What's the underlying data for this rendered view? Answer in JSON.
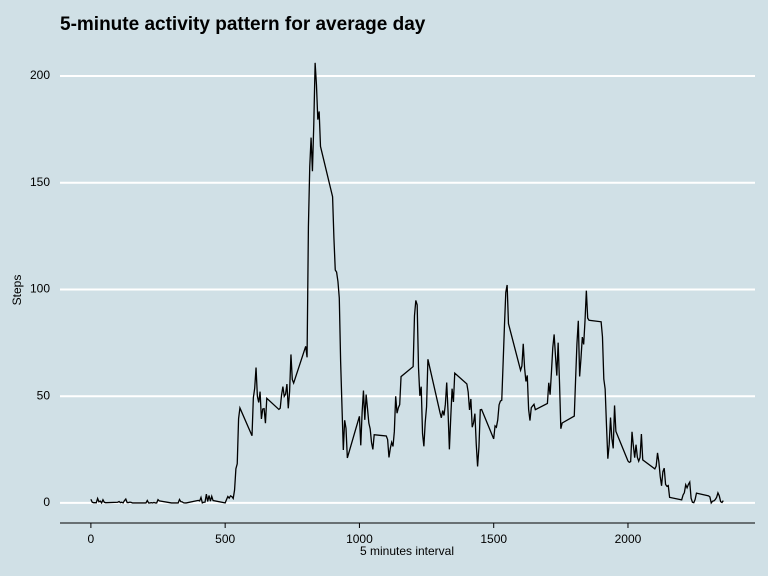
{
  "chart_data": {
    "type": "line",
    "title": "5-minute activity pattern for average day",
    "x_label": "5 minutes interval",
    "y_label": "Steps",
    "xlim": [
      -115,
      2473
    ],
    "ylim": [
      -9.4,
      207.5
    ],
    "xticks": [
      0,
      500,
      1000,
      1500,
      2000
    ],
    "yticks": [
      0,
      50,
      100,
      150,
      200
    ],
    "grid": true,
    "series": [
      {
        "color": "#000000",
        "x": [
          0,
          5,
          10,
          15,
          20,
          25,
          30,
          35,
          40,
          45,
          50,
          55,
          100,
          105,
          110,
          115,
          120,
          125,
          130,
          135,
          140,
          145,
          150,
          155,
          200,
          205,
          210,
          215,
          220,
          225,
          230,
          235,
          240,
          245,
          250,
          255,
          300,
          305,
          310,
          315,
          320,
          325,
          330,
          335,
          340,
          345,
          350,
          355,
          400,
          405,
          410,
          415,
          420,
          425,
          430,
          435,
          440,
          445,
          450,
          455,
          500,
          505,
          510,
          515,
          520,
          525,
          530,
          535,
          540,
          545,
          550,
          555,
          600,
          605,
          610,
          615,
          620,
          625,
          630,
          635,
          640,
          645,
          650,
          655,
          700,
          705,
          710,
          715,
          720,
          725,
          730,
          735,
          740,
          745,
          750,
          755,
          800,
          805,
          810,
          815,
          820,
          825,
          830,
          835,
          840,
          845,
          850,
          855,
          900,
          905,
          910,
          915,
          920,
          925,
          930,
          935,
          940,
          945,
          950,
          955,
          1000,
          1005,
          1010,
          1015,
          1020,
          1025,
          1030,
          1035,
          1040,
          1045,
          1050,
          1055,
          1100,
          1105,
          1110,
          1115,
          1120,
          1125,
          1130,
          1135,
          1140,
          1145,
          1150,
          1155,
          1200,
          1205,
          1210,
          1215,
          1220,
          1225,
          1230,
          1235,
          1240,
          1245,
          1250,
          1255,
          1300,
          1305,
          1310,
          1315,
          1320,
          1325,
          1330,
          1335,
          1340,
          1345,
          1350,
          1355,
          1400,
          1405,
          1410,
          1415,
          1420,
          1425,
          1430,
          1435,
          1440,
          1445,
          1450,
          1455,
          1500,
          1505,
          1510,
          1515,
          1520,
          1525,
          1530,
          1535,
          1540,
          1545,
          1550,
          1555,
          1600,
          1605,
          1610,
          1615,
          1620,
          1625,
          1630,
          1635,
          1640,
          1645,
          1650,
          1655,
          1700,
          1705,
          1710,
          1715,
          1720,
          1725,
          1730,
          1735,
          1740,
          1745,
          1750,
          1755,
          1800,
          1805,
          1810,
          1815,
          1820,
          1825,
          1830,
          1835,
          1840,
          1845,
          1850,
          1855,
          1900,
          1905,
          1910,
          1915,
          1920,
          1925,
          1930,
          1935,
          1940,
          1945,
          1950,
          1955,
          2000,
          2005,
          2010,
          2015,
          2020,
          2025,
          2030,
          2035,
          2040,
          2045,
          2050,
          2055,
          2100,
          2105,
          2110,
          2115,
          2120,
          2125,
          2130,
          2135,
          2140,
          2145,
          2150,
          2155,
          2200,
          2205,
          2210,
          2215,
          2220,
          2225,
          2230,
          2235,
          2240,
          2245,
          2250,
          2255,
          2300,
          2305,
          2310,
          2315,
          2320,
          2325,
          2330,
          2335,
          2340,
          2345,
          2350,
          2355
        ],
        "values": [
          1.72,
          0.34,
          0.13,
          0.15,
          0.08,
          2.09,
          0.53,
          0.87,
          0,
          1.47,
          0.3,
          0.13,
          0.32,
          0.68,
          0.15,
          0.34,
          0,
          1.11,
          1.83,
          0.17,
          0.17,
          0.38,
          0.26,
          0,
          0,
          0,
          1.13,
          0,
          0,
          0.13,
          0,
          0.23,
          0,
          0,
          1.55,
          0.94,
          0,
          0,
          0,
          0,
          0,
          0,
          1.62,
          0.58,
          0.49,
          0.08,
          0,
          0,
          1.19,
          0.94,
          2.57,
          0,
          0.34,
          0.36,
          4.11,
          0.66,
          3.49,
          0.83,
          3.11,
          1.11,
          0,
          1.57,
          3,
          2.25,
          3.32,
          2.96,
          2.09,
          6.06,
          16.02,
          18.34,
          39.45,
          44.49,
          31.49,
          49.26,
          53.77,
          63.45,
          49.96,
          47.08,
          52.15,
          39.34,
          44.02,
          44.17,
          37.36,
          49.04,
          43.81,
          44.38,
          50.51,
          54.51,
          49.92,
          50.98,
          55.68,
          44.32,
          52.26,
          69.55,
          57.85,
          56.15,
          73.38,
          68.21,
          129.43,
          157.53,
          171.15,
          155.4,
          177.3,
          206.17,
          195.92,
          179.57,
          183.4,
          167.02,
          143.45,
          124.04,
          109.11,
          108.11,
          103.72,
          95.97,
          66.21,
          45.23,
          24.79,
          38.75,
          34.98,
          21.06,
          40.57,
          26.98,
          42.42,
          52.66,
          38.92,
          50.79,
          44.28,
          37.42,
          34.7,
          28.34,
          25.09,
          31.94,
          31.36,
          29.68,
          21.32,
          25.55,
          28.38,
          26.47,
          33.43,
          49.98,
          42.04,
          44.6,
          46.04,
          59.19,
          63.87,
          87.7,
          94.85,
          92.77,
          63.4,
          50.17,
          54.47,
          32.42,
          26.53,
          37.74,
          45.06,
          67.28,
          42.34,
          39.89,
          43.26,
          40.98,
          46.25,
          56.43,
          42.75,
          25.13,
          39.96,
          53.55,
          47.32,
          60.81,
          55.75,
          51.96,
          43.58,
          48.7,
          35.47,
          37.55,
          41.85,
          27.51,
          17.11,
          26.08,
          43.62,
          43.77,
          30.02,
          36.08,
          35.49,
          38.85,
          45.96,
          47.75,
          48.13,
          65.32,
          82.91,
          98.66,
          102.11,
          83.96,
          62.13,
          64.13,
          74.55,
          63.17,
          56.91,
          59.77,
          43.87,
          38.57,
          44.66,
          45.45,
          46.21,
          43.68,
          46.62,
          56.3,
          50.72,
          61.23,
          72.72,
          78.94,
          68.94,
          59.66,
          75.09,
          56.51,
          34.77,
          37.45,
          40.68,
          58.02,
          74.7,
          85.32,
          59.26,
          67.77,
          77.7,
          74.25,
          85.34,
          99.45,
          86.58,
          85.6,
          84.87,
          77.83,
          58.04,
          53.36,
          36.33,
          20.72,
          27.4,
          40.02,
          30.21,
          25.55,
          45.66,
          33.53,
          19.62,
          19.02,
          19.34,
          33.34,
          26.81,
          21.17,
          27.3,
          21.34,
          19.55,
          21.32,
          32.3,
          20.15,
          15.94,
          17.23,
          23.45,
          19.25,
          12.45,
          8.02,
          14.66,
          16.3,
          8.68,
          7.79,
          8.13,
          2.62,
          1.45,
          3.68,
          4.81,
          8.51,
          7.08,
          8.7,
          9.75,
          2.21,
          0.32,
          0.11,
          1.6,
          4.6,
          3.3,
          2.85,
          0,
          0.83,
          0.96,
          1.58,
          2.6,
          4.7,
          3.3,
          0.64,
          0.23,
          1.08
        ]
      }
    ]
  }
}
